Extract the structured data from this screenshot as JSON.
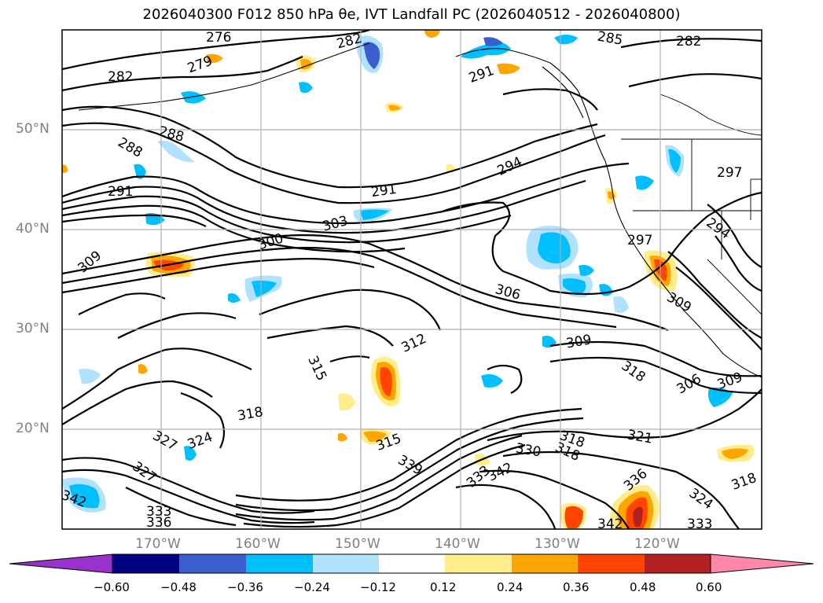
{
  "figure": {
    "title": "2026040300 F012 850 hPa θe, IVT Landfall PC (2026040512 - 2026040800)",
    "lat_labels": [
      "50°N",
      "40°N",
      "30°N",
      "20°N"
    ],
    "lon_labels": [
      "170°W",
      "160°W",
      "150°W",
      "140°W",
      "130°W",
      "120°W"
    ],
    "contour_labels": [
      "276",
      "279",
      "282",
      "282",
      "285",
      "282",
      "291",
      "288",
      "288",
      "291",
      "294",
      "291",
      "297",
      "303",
      "300",
      "309",
      "294",
      "297",
      "306",
      "309",
      "312",
      "309",
      "315",
      "318",
      "306",
      "309",
      "318",
      "318",
      "321",
      "324",
      "327",
      "327",
      "315",
      "339",
      "330",
      "318",
      "333",
      "342",
      "336",
      "333",
      "342",
      "336",
      "342",
      "333",
      "324",
      "318"
    ]
  },
  "colorbar": {
    "tick_labels": [
      "−0.60",
      "−0.48",
      "−0.36",
      "−0.24",
      "−0.12",
      "0.12",
      "0.24",
      "0.36",
      "0.48",
      "0.60"
    ],
    "colors": [
      "#9932cc",
      "#000080",
      "#3a5fcd",
      "#00bfff",
      "#b0e2ff",
      "#ffffff",
      "#ffec8b",
      "#ffa500",
      "#ff4500",
      "#b22222",
      "#ff88aa"
    ]
  }
}
